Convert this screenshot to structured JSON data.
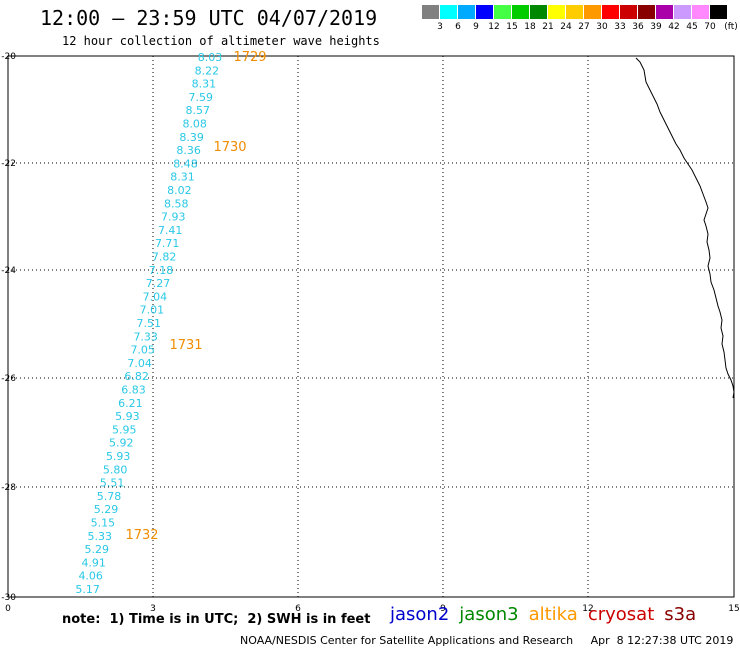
{
  "header": {
    "title": "12:00 – 23:59 UTC 04/07/2019",
    "subtitle": "12 hour collection of altimeter wave heights"
  },
  "legend": {
    "unit": "(ft)",
    "colors": [
      "#808080",
      "#00ffff",
      "#00aaff",
      "#0000ff",
      "#44ff44",
      "#00cc00",
      "#008800",
      "#ffff00",
      "#ffcc00",
      "#ff9900",
      "#ff0000",
      "#cc0000",
      "#880000",
      "#aa00aa",
      "#cc99ff",
      "#ff88ff",
      "#000000"
    ],
    "labels": [
      "3",
      "6",
      "9",
      "12",
      "15",
      "18",
      "21",
      "24",
      "27",
      "30",
      "33",
      "36",
      "39",
      "42",
      "45",
      "70"
    ]
  },
  "axes": {
    "x_ticks": [
      "0",
      "3",
      "6",
      "9",
      "12",
      "15"
    ],
    "y_ticks": [
      "-20",
      "-22",
      "-24",
      "-26",
      "-28",
      "-30"
    ]
  },
  "track": {
    "color": "#29c8e6",
    "values": [
      "8.03",
      "8.22",
      "8.31",
      "7.59",
      "8.57",
      "8.08",
      "8.39",
      "8.36",
      "8.48",
      "8.31",
      "8.02",
      "8.58",
      "7.93",
      "7.41",
      "7.71",
      "7.82",
      "7.18",
      "7.27",
      "7.04",
      "7.01",
      "7.51",
      "7.33",
      "7.05",
      "7.04",
      "6.82",
      "6.83",
      "6.21",
      "5.93",
      "5.95",
      "5.92",
      "5.93",
      "5.80",
      "5.51",
      "5.78",
      "5.29",
      "5.15",
      "5.33",
      "5.29",
      "4.91",
      "4.06",
      "5.17"
    ],
    "times": [
      "1729",
      "1730",
      "1731",
      "1732"
    ],
    "time_color": "#f08c00"
  },
  "footer": {
    "note": "note:  1) Time is in UTC;  2) SWH is in feet",
    "credit": "NOAA/NESDIS Center for Satellite Applications and Research     Apr  8 12:27:38 UTC 2019"
  },
  "satellites": [
    {
      "name": "jason2",
      "color": "#0000cc"
    },
    {
      "name": "jason3",
      "color": "#008800"
    },
    {
      "name": "altika",
      "color": "#ff9900"
    },
    {
      "name": "cryosat",
      "color": "#cc0000"
    },
    {
      "name": "s3a",
      "color": "#880000"
    }
  ]
}
